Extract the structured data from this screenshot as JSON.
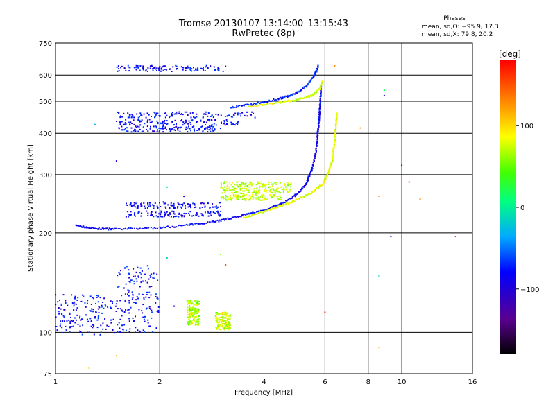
{
  "chart_data": {
    "type": "scatter",
    "title": "Tromsø 20130107 13:14:00–13:15:43",
    "subtitle": "RwPretec (8p)",
    "stats": {
      "heading": "Phases",
      "line1": "mean, sd,O: −95.9, 17.3",
      "line2": "mean, sd,X:  79.8, 20.2"
    },
    "xlabel": "Frequency [MHz]",
    "ylabel": "Stationary phase Virtual Height [km]",
    "x_scale": "log",
    "y_scale": "log",
    "xlim": [
      1,
      16
    ],
    "ylim": [
      75,
      750
    ],
    "x_ticks": [
      1,
      2,
      4,
      6,
      8,
      10,
      16
    ],
    "x_tick_labels": [
      "1",
      "2",
      "4",
      "6",
      "8",
      "10",
      "16"
    ],
    "y_ticks": [
      75,
      100,
      200,
      300,
      400,
      500,
      600,
      750
    ],
    "y_tick_labels": [
      "75",
      "100",
      "200",
      "300",
      "400",
      "500",
      "600",
      "750"
    ],
    "grid": true,
    "colorbar": {
      "label": "[deg]",
      "range": [
        -180,
        180
      ],
      "ticks": [
        100,
        0,
        -100
      ],
      "tick_labels": [
        "100",
        "0",
        "−100"
      ]
    },
    "series": [
      {
        "type": "curve",
        "phase": -95,
        "points": [
          [
            1.15,
            210
          ],
          [
            1.3,
            206
          ],
          [
            1.5,
            205
          ],
          [
            2.0,
            207
          ],
          [
            2.5,
            212
          ],
          [
            3.0,
            218
          ],
          [
            3.5,
            226
          ],
          [
            4.0,
            234
          ],
          [
            4.5,
            245
          ],
          [
            5.0,
            262
          ],
          [
            5.3,
            282
          ],
          [
            5.5,
            310
          ],
          [
            5.65,
            350
          ],
          [
            5.72,
            400
          ],
          [
            5.78,
            450
          ],
          [
            5.82,
            500
          ],
          [
            5.85,
            560
          ]
        ]
      },
      {
        "type": "curve",
        "phase": 80,
        "points": [
          [
            3.5,
            222
          ],
          [
            4.0,
            232
          ],
          [
            4.5,
            242
          ],
          [
            5.0,
            252
          ],
          [
            5.5,
            265
          ],
          [
            5.9,
            280
          ],
          [
            6.1,
            300
          ],
          [
            6.3,
            330
          ],
          [
            6.4,
            380
          ],
          [
            6.45,
            420
          ],
          [
            6.5,
            460
          ]
        ]
      },
      {
        "type": "curve",
        "phase": -80,
        "points": [
          [
            3.2,
            478
          ],
          [
            3.8,
            492
          ],
          [
            4.4,
            508
          ],
          [
            4.9,
            525
          ],
          [
            5.3,
            555
          ],
          [
            5.6,
            600
          ],
          [
            5.75,
            640
          ]
        ]
      },
      {
        "type": "curve",
        "phase": 75,
        "points": [
          [
            3.6,
            480
          ],
          [
            4.4,
            495
          ],
          [
            5.0,
            505
          ],
          [
            5.5,
            520
          ],
          [
            5.8,
            545
          ],
          [
            5.9,
            575
          ]
        ]
      },
      {
        "type": "band",
        "phase": -90,
        "f": [
          1.5,
          3.8
        ],
        "h": 455
      },
      {
        "type": "band",
        "phase": -90,
        "f": [
          1.5,
          3.4
        ],
        "h": 432
      },
      {
        "type": "band",
        "phase": -90,
        "f": [
          1.5,
          3.0
        ],
        "h": 412
      },
      {
        "type": "band",
        "phase": -90,
        "f": [
          1.5,
          3.1
        ],
        "h": 628
      },
      {
        "type": "band",
        "phase": -95,
        "f": [
          1.6,
          3.0
        ],
        "h": 242
      },
      {
        "type": "band",
        "phase": -95,
        "f": [
          1.6,
          3.0
        ],
        "h": 228
      },
      {
        "type": "band",
        "phase": 70,
        "f": [
          3.0,
          4.8
        ],
        "h": 280
      },
      {
        "type": "band",
        "phase": 70,
        "f": [
          3.0,
          4.8
        ],
        "h": 268
      },
      {
        "type": "band",
        "phase": 70,
        "f": [
          3.0,
          4.5
        ],
        "h": 256
      },
      {
        "type": "cluster",
        "phase": -90,
        "f": [
          1.0,
          1.5
        ],
        "h": [
          98,
          130
        ]
      },
      {
        "type": "cluster",
        "phase": -90,
        "f": [
          1.5,
          2.0
        ],
        "h": [
          100,
          160
        ]
      },
      {
        "type": "cluster",
        "phase": 70,
        "f": [
          2.4,
          2.6
        ],
        "h": [
          105,
          125
        ]
      },
      {
        "type": "cluster",
        "phase": 75,
        "f": [
          2.9,
          3.2
        ],
        "h": [
          102,
          115
        ]
      }
    ],
    "isolated_points": [
      {
        "f": 8.9,
        "h": 540,
        "phase": 10
      },
      {
        "f": 8.9,
        "h": 520,
        "phase": -110
      },
      {
        "f": 7.6,
        "h": 415,
        "phase": 120
      },
      {
        "f": 10.0,
        "h": 320,
        "phase": -100
      },
      {
        "f": 10.5,
        "h": 285,
        "phase": 150
      },
      {
        "f": 11.3,
        "h": 253,
        "phase": 130
      },
      {
        "f": 14.3,
        "h": 195,
        "phase": 160
      },
      {
        "f": 9.3,
        "h": 195,
        "phase": -120
      },
      {
        "f": 8.6,
        "h": 258,
        "phase": 140
      },
      {
        "f": 8.6,
        "h": 148,
        "phase": -20
      },
      {
        "f": 8.6,
        "h": 90,
        "phase": 110
      },
      {
        "f": 6.0,
        "h": 115,
        "phase": 170
      },
      {
        "f": 6.4,
        "h": 640,
        "phase": 130
      },
      {
        "f": 1.5,
        "h": 330,
        "phase": -100
      },
      {
        "f": 1.5,
        "h": 85,
        "phase": 110
      },
      {
        "f": 1.3,
        "h": 425,
        "phase": -30
      },
      {
        "f": 2.1,
        "h": 275,
        "phase": -10
      },
      {
        "f": 2.05,
        "h": 248,
        "phase": -110
      },
      {
        "f": 2.35,
        "h": 258,
        "phase": -90
      },
      {
        "f": 2.1,
        "h": 168,
        "phase": -20
      },
      {
        "f": 1.25,
        "h": 78,
        "phase": 100
      },
      {
        "f": 2.2,
        "h": 120,
        "phase": -100
      },
      {
        "f": 3.0,
        "h": 172,
        "phase": 60
      },
      {
        "f": 3.1,
        "h": 160,
        "phase": 150
      }
    ]
  }
}
